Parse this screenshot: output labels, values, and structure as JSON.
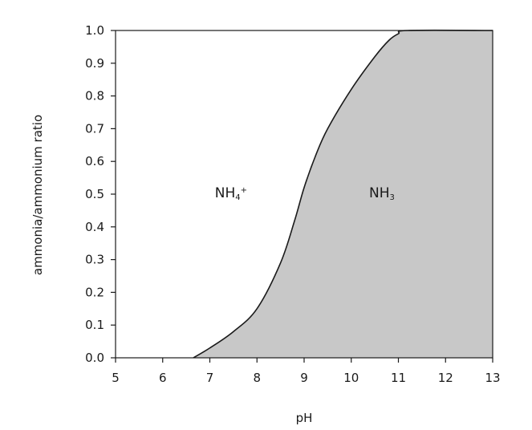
{
  "chart_data": {
    "type": "area",
    "title": "",
    "xlabel": "pH",
    "ylabel": "ammonia/ammonium ratio",
    "xlim": [
      5,
      13
    ],
    "ylim": [
      0,
      1
    ],
    "x_ticks": [
      "5",
      "6",
      "7",
      "8",
      "9",
      "10",
      "11",
      "12",
      "13"
    ],
    "y_ticks": [
      "0.0",
      "0.1",
      "0.2",
      "0.3",
      "0.4",
      "0.5",
      "0.6",
      "0.7",
      "0.8",
      "0.9",
      "1.0"
    ],
    "grid": false,
    "fill_color": "#c8c8c8",
    "line_color": "#1a1a1a",
    "series": [
      {
        "x": [
          6.65,
          7.0,
          7.5,
          8.0,
          8.5,
          8.8,
          9.0,
          9.25,
          9.5,
          10.0,
          10.5,
          10.8,
          11.0,
          11.2,
          13.0
        ],
        "y": [
          0.0,
          0.03,
          0.08,
          0.15,
          0.29,
          0.42,
          0.52,
          0.62,
          0.7,
          0.82,
          0.92,
          0.97,
          0.99,
          1.0,
          1.0
        ]
      }
    ],
    "annotations": [
      {
        "text": "NH",
        "superscript": "4",
        "suffix": "+",
        "x": 7.45,
        "y": 0.49
      },
      {
        "text": "NH",
        "subscript": "3",
        "x": 10.65,
        "y": 0.49
      }
    ]
  }
}
